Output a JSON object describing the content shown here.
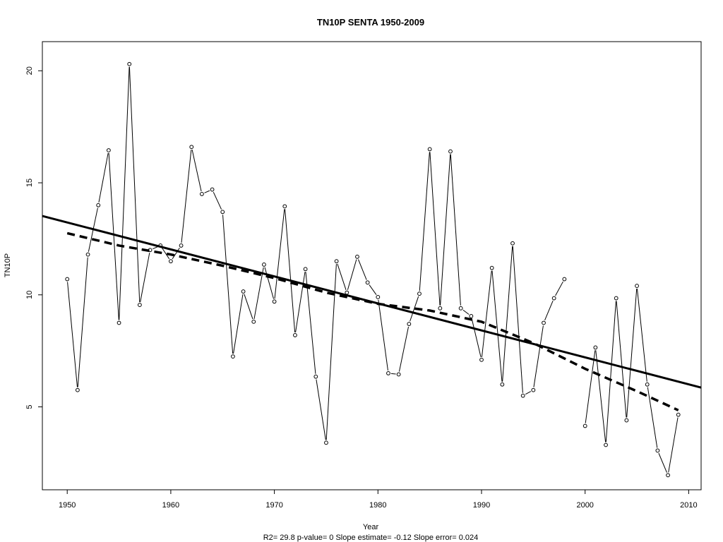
{
  "chart_data": {
    "type": "line",
    "title": "TN10P    SENTA 1950-2009",
    "xlabel": "Year",
    "ylabel": "TN10P",
    "footer": "R2= 29.8  p-value= 0  Slope estimate= -0.12  Slope error= 0.024",
    "xlim": [
      1947.6,
      2011.2
    ],
    "ylim": [
      1.3,
      21.3
    ],
    "x_ticks": [
      1950,
      1960,
      1970,
      1980,
      1990,
      2000,
      2010
    ],
    "y_ticks": [
      5,
      10,
      15,
      20
    ],
    "grid": false,
    "series": [
      {
        "style": "line-with-open-points",
        "x": [
          1950,
          1951,
          1952,
          1953,
          1954,
          1955,
          1956,
          1957,
          1958,
          1959,
          1960,
          1961,
          1962,
          1963,
          1964,
          1965,
          1966,
          1967,
          1968,
          1969,
          1970,
          1971,
          1972,
          1973,
          1974,
          1975,
          1976,
          1977,
          1978,
          1979,
          1980,
          1981,
          1982,
          1983,
          1984,
          1985,
          1986,
          1987,
          1988,
          1989,
          1990,
          1991,
          1992,
          1993,
          1994,
          1995,
          1996,
          1997,
          1998,
          1999,
          2000,
          2001,
          2002,
          2003,
          2004,
          2005,
          2006,
          2007,
          2008,
          2009
        ],
        "y": [
          10.7,
          5.75,
          11.8,
          14.0,
          16.45,
          8.75,
          20.3,
          9.55,
          12.0,
          12.2,
          11.5,
          12.2,
          16.6,
          14.5,
          14.7,
          13.7,
          7.25,
          10.15,
          8.8,
          11.35,
          9.7,
          13.95,
          8.2,
          11.15,
          6.35,
          3.4,
          11.5,
          10.1,
          11.7,
          10.55,
          9.9,
          6.5,
          6.45,
          8.7,
          10.05,
          16.5,
          9.4,
          16.4,
          9.4,
          9.05,
          7.1,
          11.2,
          6.0,
          12.3,
          5.5,
          5.75,
          8.75,
          9.85,
          10.7,
          null,
          4.15,
          7.65,
          3.3,
          9.85,
          4.4,
          10.4,
          6.0,
          3.05,
          1.95,
          4.65
        ]
      },
      {
        "style": "solid-trend",
        "x": [
          1947.6,
          2011.2
        ],
        "y": [
          13.52,
          5.86
        ]
      },
      {
        "style": "dashed-smooth",
        "x": [
          1950,
          1955,
          1960,
          1965,
          1970,
          1975,
          1980,
          1985,
          1990,
          1995,
          2000,
          2005,
          2009
        ],
        "y": [
          12.75,
          12.2,
          11.8,
          11.3,
          10.75,
          10.1,
          9.6,
          9.3,
          8.8,
          7.85,
          6.7,
          5.7,
          4.85
        ]
      }
    ]
  }
}
